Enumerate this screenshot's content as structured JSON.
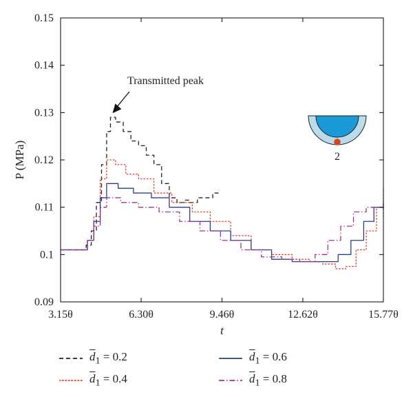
{
  "chart_data": {
    "type": "line",
    "title": "",
    "xlabel": "t",
    "ylabel": "P (MPa)",
    "xlim": [
      3.15,
      15.77
    ],
    "ylim": [
      0.09,
      0.15
    ],
    "x_ticks": [
      3.15,
      6.3,
      9.46,
      12.62,
      15.77
    ],
    "x_tick_labels": [
      "3.15θ",
      "6.30θ",
      "9.46θ",
      "12.62θ",
      "15.77θ"
    ],
    "y_ticks": [
      0.09,
      0.1,
      0.11,
      0.12,
      0.13,
      0.14,
      0.15
    ],
    "y_tick_labels": [
      "0.09",
      "0.1",
      "0.11",
      "0.12",
      "0.13",
      "0.14",
      "0.15"
    ],
    "grid": false,
    "legend_position": "bottom",
    "annotation": {
      "text": "Transmitted peak",
      "points_to": [
        5.1,
        0.129
      ]
    },
    "inset": {
      "marker_label": "2",
      "outer_color": "#b9dbea",
      "inner_color": "#1a9bd8",
      "marker_color": "#d2451f"
    },
    "series": [
      {
        "name": "d1 = 0.2",
        "legend_var": "d",
        "legend_sub": "1",
        "legend_value": "= 0.2",
        "style": "dashed",
        "color": "#222222",
        "points": [
          [
            3.15,
            0.101
          ],
          [
            3.95,
            0.101
          ],
          [
            4.15,
            0.102
          ],
          [
            4.35,
            0.105
          ],
          [
            4.55,
            0.111
          ],
          [
            4.75,
            0.119
          ],
          [
            4.95,
            0.126
          ],
          [
            5.1,
            0.129
          ],
          [
            5.3,
            0.128
          ],
          [
            5.6,
            0.126
          ],
          [
            5.9,
            0.124
          ],
          [
            6.2,
            0.123
          ],
          [
            6.5,
            0.121
          ],
          [
            6.8,
            0.119
          ],
          [
            7.1,
            0.115
          ],
          [
            7.4,
            0.112
          ],
          [
            7.7,
            0.111
          ],
          [
            8.0,
            0.1115
          ],
          [
            8.2,
            0.111
          ],
          [
            8.5,
            0.112
          ],
          [
            8.8,
            0.112
          ],
          [
            9.1,
            0.113
          ],
          [
            9.35,
            0.1135
          ]
        ]
      },
      {
        "name": "d1 = 0.4",
        "legend_var": "d",
        "legend_sub": "1",
        "legend_value": "= 0.4",
        "style": "dotted",
        "color": "#e03a2c",
        "points": [
          [
            3.15,
            0.101
          ],
          [
            3.95,
            0.101
          ],
          [
            4.2,
            0.103
          ],
          [
            4.45,
            0.108
          ],
          [
            4.7,
            0.116
          ],
          [
            4.95,
            0.12
          ],
          [
            5.3,
            0.119
          ],
          [
            5.7,
            0.117
          ],
          [
            6.2,
            0.116
          ],
          [
            6.8,
            0.113
          ],
          [
            7.5,
            0.111
          ],
          [
            8.3,
            0.109
          ],
          [
            9.0,
            0.107
          ],
          [
            9.8,
            0.104
          ],
          [
            10.6,
            0.101
          ],
          [
            11.4,
            0.1
          ],
          [
            12.2,
            0.099
          ],
          [
            12.9,
            0.0985
          ],
          [
            13.4,
            0.098
          ],
          [
            13.9,
            0.097
          ],
          [
            14.3,
            0.0975
          ],
          [
            14.7,
            0.101
          ],
          [
            15.1,
            0.105
          ],
          [
            15.5,
            0.11
          ],
          [
            15.77,
            0.114
          ]
        ]
      },
      {
        "name": "d1 = 0.6",
        "legend_var": "d",
        "legend_sub": "1",
        "legend_value": "= 0.6",
        "style": "solid",
        "color": "#2f3b8f",
        "points": [
          [
            3.15,
            0.101
          ],
          [
            3.95,
            0.101
          ],
          [
            4.2,
            0.103
          ],
          [
            4.45,
            0.107
          ],
          [
            4.7,
            0.112
          ],
          [
            4.95,
            0.115
          ],
          [
            5.4,
            0.114
          ],
          [
            6.0,
            0.113
          ],
          [
            6.7,
            0.112
          ],
          [
            7.4,
            0.11
          ],
          [
            8.2,
            0.107
          ],
          [
            9.0,
            0.105
          ],
          [
            9.8,
            0.103
          ],
          [
            10.6,
            0.101
          ],
          [
            11.4,
            0.099
          ],
          [
            12.2,
            0.0985
          ],
          [
            12.9,
            0.0985
          ],
          [
            13.5,
            0.0985
          ],
          [
            14.0,
            0.1
          ],
          [
            14.5,
            0.103
          ],
          [
            15.0,
            0.107
          ],
          [
            15.4,
            0.11
          ],
          [
            15.77,
            0.111
          ]
        ]
      },
      {
        "name": "d1 = 0.8",
        "legend_var": "d",
        "legend_sub": "1",
        "legend_value": "= 0.8",
        "style": "dashdot",
        "color": "#a0338f",
        "points": [
          [
            3.15,
            0.101
          ],
          [
            3.95,
            0.101
          ],
          [
            4.2,
            0.103
          ],
          [
            4.45,
            0.106
          ],
          [
            4.7,
            0.11
          ],
          [
            4.95,
            0.112
          ],
          [
            5.5,
            0.111
          ],
          [
            6.2,
            0.11
          ],
          [
            7.0,
            0.109
          ],
          [
            7.8,
            0.107
          ],
          [
            8.6,
            0.105
          ],
          [
            9.4,
            0.103
          ],
          [
            10.2,
            0.101
          ],
          [
            11.0,
            0.0995
          ],
          [
            11.8,
            0.099
          ],
          [
            12.5,
            0.0985
          ],
          [
            13.1,
            0.1
          ],
          [
            13.6,
            0.103
          ],
          [
            14.1,
            0.106
          ],
          [
            14.6,
            0.109
          ],
          [
            15.1,
            0.11
          ],
          [
            15.5,
            0.11
          ],
          [
            15.77,
            0.108
          ]
        ]
      }
    ]
  }
}
